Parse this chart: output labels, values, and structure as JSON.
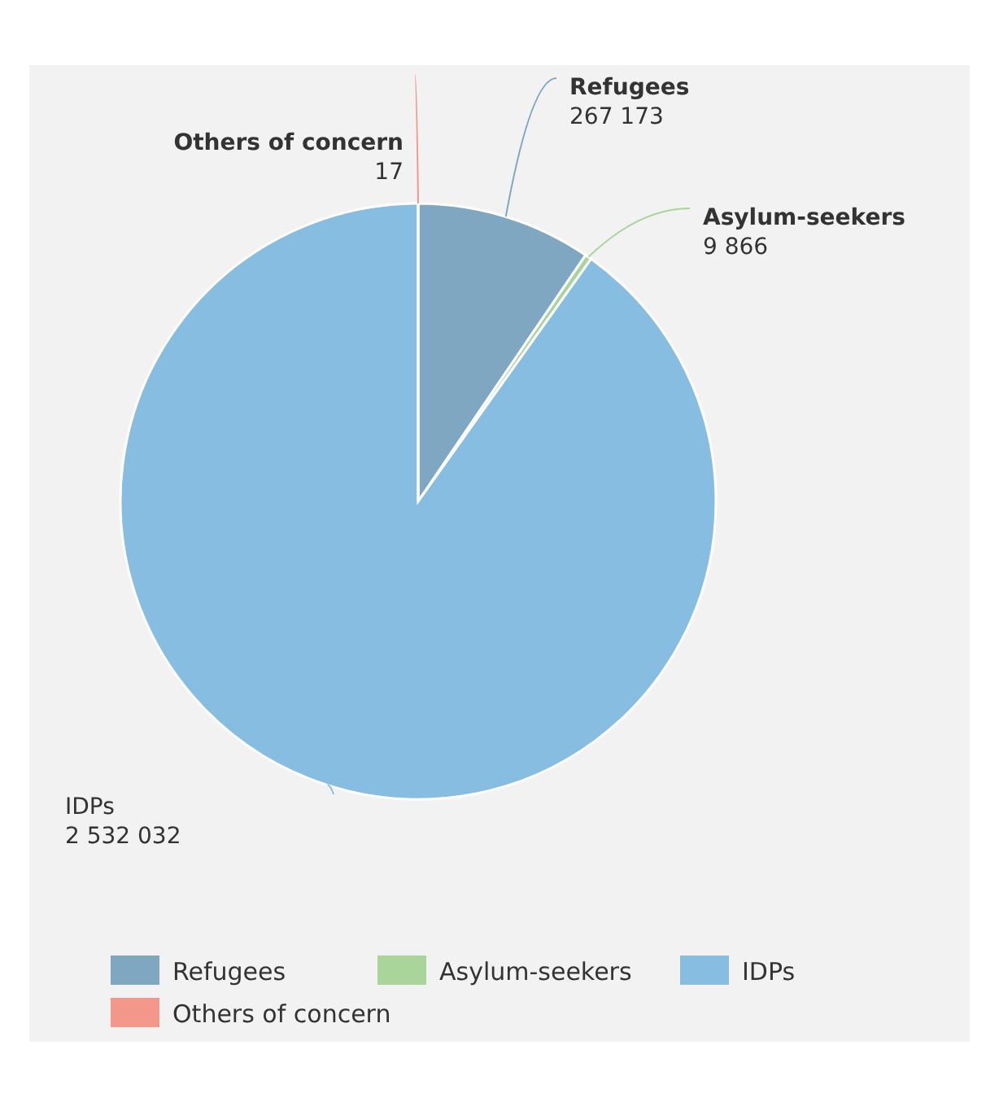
{
  "chart_data": {
    "type": "pie",
    "categories": [
      "Refugees",
      "Asylum-seekers",
      "IDPs",
      "Others of concern"
    ],
    "values": [
      267173,
      9866,
      2532032,
      17
    ],
    "colors": [
      "#7fa7c2",
      "#a9d59b",
      "#86bde0",
      "#f4978b"
    ],
    "value_labels": [
      "267 173",
      "9 866",
      "2 532 032",
      "17"
    ],
    "legend": "bottom"
  }
}
